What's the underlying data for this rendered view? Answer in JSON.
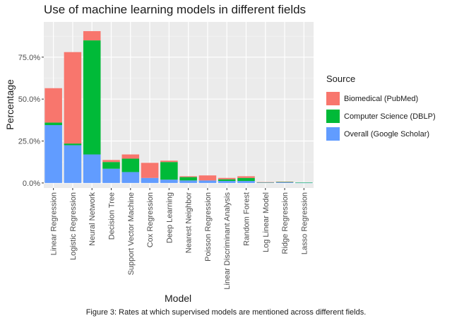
{
  "chart_data": {
    "type": "bar",
    "stacked": true,
    "title": "Use of machine learning models in different fields",
    "xlabel": "Model",
    "ylabel": "Percentage",
    "ylim": [
      -0.03,
      0.96
    ],
    "yticks": [
      0,
      0.25,
      0.5,
      0.75
    ],
    "ytick_labels": [
      "0.0%",
      "25.0%",
      "50.0%",
      "75.0%"
    ],
    "grid": true,
    "legend_position": "right",
    "legend_title": "Source",
    "categories": [
      "Linear Regression",
      "Logistic Regression",
      "Neural Network",
      "Decision Tree",
      "Support Vector Machine",
      "Cox Regression",
      "Deep Learning",
      "Nearest Neighbor",
      "Poisson Regression",
      "Linear Discriminant Analysis",
      "Random Forest",
      "Log Linear Model",
      "Ridge Regression",
      "Lasso Regression"
    ],
    "series": [
      {
        "name": "Overall (Google Scholar)",
        "color": "#619CFF",
        "values": [
          0.345,
          0.225,
          0.17,
          0.085,
          0.065,
          0.03,
          0.02,
          0.015,
          0.015,
          0.012,
          0.012,
          0.003,
          0.004,
          0.001
        ]
      },
      {
        "name": "Computer Science (DBLP)",
        "color": "#00BA38",
        "values": [
          0.015,
          0.01,
          0.68,
          0.04,
          0.08,
          0.0,
          0.105,
          0.02,
          0.0,
          0.01,
          0.018,
          0.001,
          0.003,
          0.002
        ]
      },
      {
        "name": "Biomedical (PubMed)",
        "color": "#F8766D",
        "values": [
          0.205,
          0.545,
          0.055,
          0.012,
          0.025,
          0.09,
          0.008,
          0.005,
          0.03,
          0.008,
          0.01,
          0.001,
          0.001,
          0.0
        ]
      }
    ]
  },
  "caption": "Figure 3: Rates at which supervised models are mentioned across different fields.",
  "legend": {
    "title": "Source",
    "items": [
      {
        "label": "Biomedical (PubMed)",
        "color": "#F8766D"
      },
      {
        "label": "Computer Science (DBLP)",
        "color": "#00BA38"
      },
      {
        "label": "Overall (Google Scholar)",
        "color": "#619CFF"
      }
    ]
  }
}
